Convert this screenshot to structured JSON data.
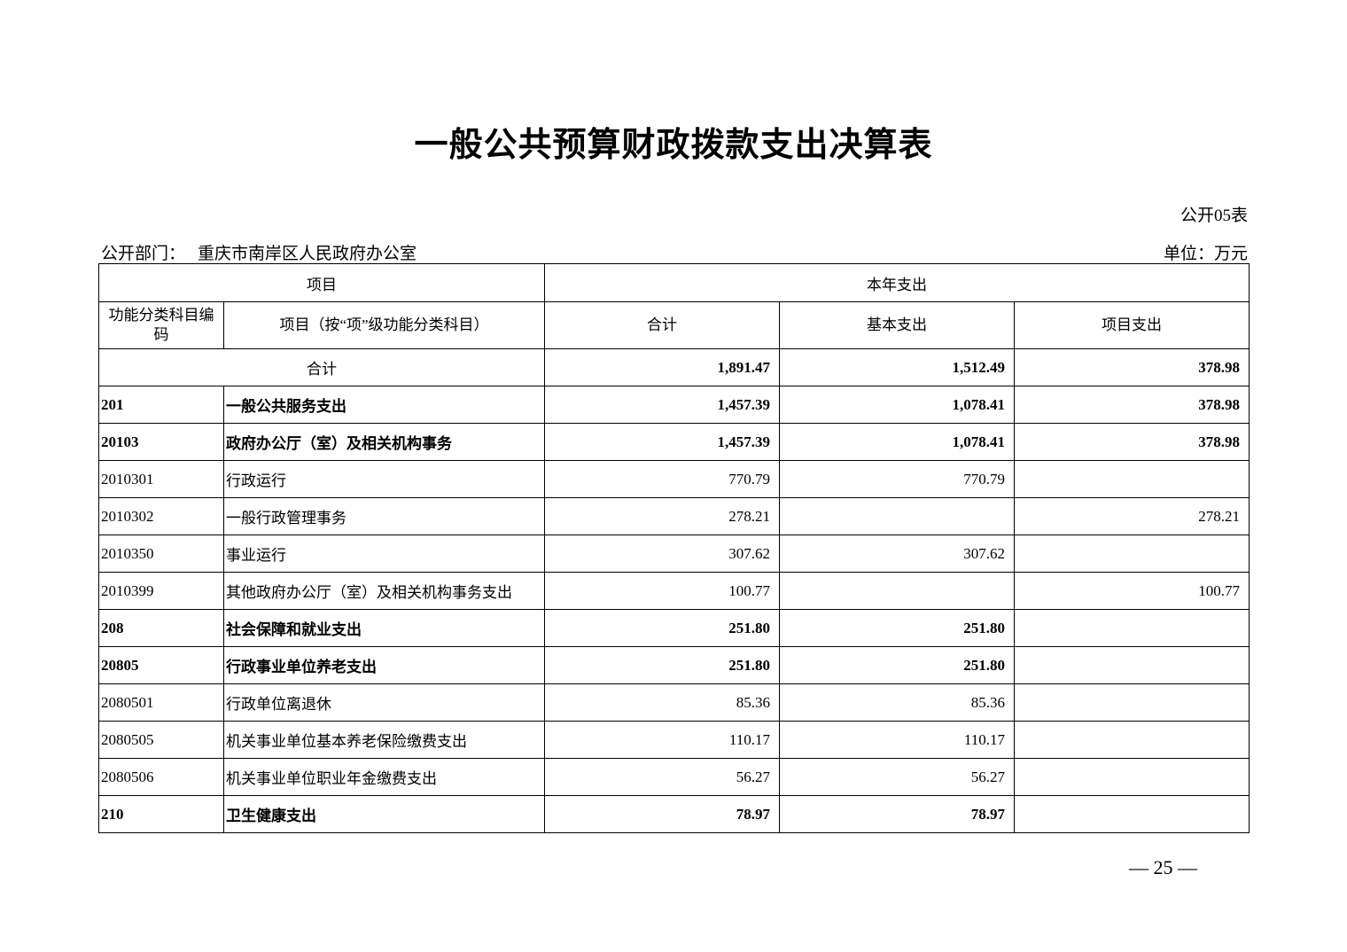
{
  "title": "一般公共预算财政拨款支出决算表",
  "form_no": "公开05表",
  "dept_label": "公开部门：",
  "dept_name": "重庆市南岸区人民政府办公室",
  "unit": "单位：万元",
  "headers": {
    "item": "项目",
    "current_year": "本年支出",
    "code": "功能分类科目编码",
    "name": "项目（按“项”级功能分类科目）",
    "total": "合计",
    "basic": "基本支出",
    "project": "项目支出"
  },
  "total_row": {
    "label": "合计",
    "total": "1,891.47",
    "basic": "1,512.49",
    "project": "378.98"
  },
  "rows": [
    {
      "code": "201",
      "name": "一般公共服务支出",
      "total": "1,457.39",
      "basic": "1,078.41",
      "project": "378.98",
      "bold": true
    },
    {
      "code": "20103",
      "name": "政府办公厅（室）及相关机构事务",
      "total": "1,457.39",
      "basic": "1,078.41",
      "project": "378.98",
      "bold": true
    },
    {
      "code": "2010301",
      "name": "行政运行",
      "total": "770.79",
      "basic": "770.79",
      "project": ""
    },
    {
      "code": "2010302",
      "name": "一般行政管理事务",
      "total": "278.21",
      "basic": "",
      "project": "278.21"
    },
    {
      "code": "2010350",
      "name": "事业运行",
      "total": "307.62",
      "basic": "307.62",
      "project": ""
    },
    {
      "code": "2010399",
      "name": "其他政府办公厅（室）及相关机构事务支出",
      "total": "100.77",
      "basic": "",
      "project": "100.77"
    },
    {
      "code": "208",
      "name": "社会保障和就业支出",
      "total": "251.80",
      "basic": "251.80",
      "project": "",
      "bold": true
    },
    {
      "code": "20805",
      "name": "行政事业单位养老支出",
      "total": "251.80",
      "basic": "251.80",
      "project": "",
      "bold": true
    },
    {
      "code": "2080501",
      "name": "行政单位离退休",
      "total": "85.36",
      "basic": "85.36",
      "project": ""
    },
    {
      "code": "2080505",
      "name": "机关事业单位基本养老保险缴费支出",
      "total": "110.17",
      "basic": "110.17",
      "project": ""
    },
    {
      "code": "2080506",
      "name": "机关事业单位职业年金缴费支出",
      "total": "56.27",
      "basic": "56.27",
      "project": ""
    },
    {
      "code": "210",
      "name": "卫生健康支出",
      "total": "78.97",
      "basic": "78.97",
      "project": "",
      "bold": true
    }
  ],
  "page_number": "— 25 —"
}
